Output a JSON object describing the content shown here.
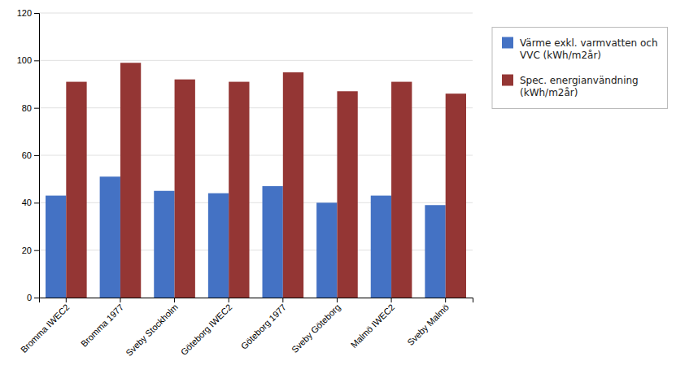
{
  "chart_data": {
    "type": "bar",
    "categories": [
      "Bromma IWEC2",
      "Bromma 1977",
      "Sveby Stockholm",
      "Göteborg IWEC2",
      "Göteborg 1977",
      "Sveby Göteborg",
      "Malmö IWEC2",
      "Sveby Malmö"
    ],
    "series": [
      {
        "name": "Värme exkl. varmvatten och\nVVC (kWh/m2år)",
        "color": "#4472C4",
        "values": [
          43,
          51,
          45,
          44,
          47,
          40,
          43,
          39
        ]
      },
      {
        "name": "Spec. energianvändning\n(kWh/m2år)",
        "color": "#943634",
        "values": [
          91,
          99,
          92,
          91,
          95,
          87,
          91,
          86
        ]
      }
    ],
    "ylim": [
      0,
      120
    ],
    "yticks": [
      0,
      20,
      40,
      60,
      80,
      100,
      120
    ],
    "grid": true,
    "legend": "right"
  }
}
